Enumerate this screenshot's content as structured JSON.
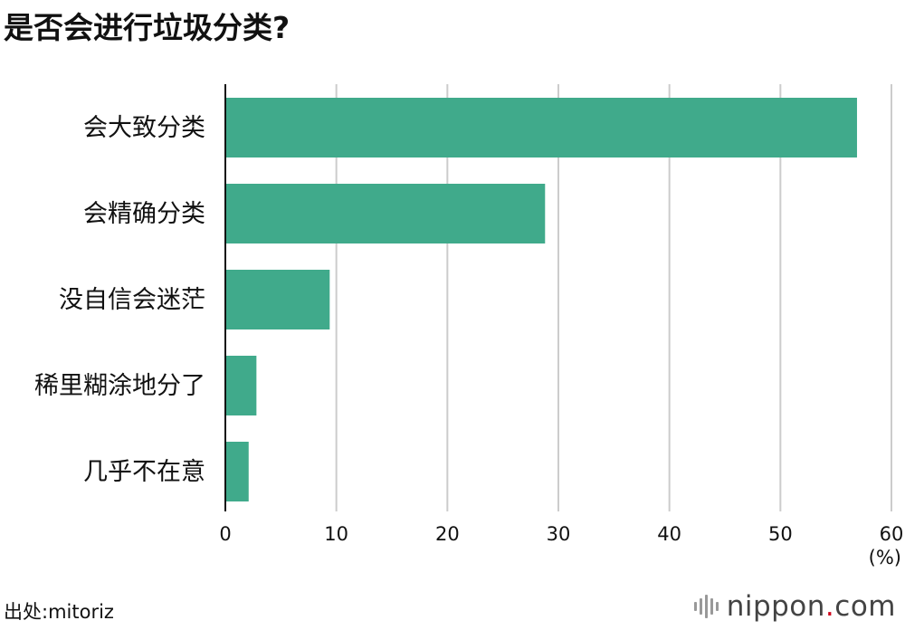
{
  "chart_data": {
    "type": "bar",
    "orientation": "horizontal",
    "title": "是否会进行垃圾分类?",
    "categories": [
      "会大致分类",
      "会精确分类",
      "没自信会迷茫",
      "稀里糊涂地分了",
      "几乎不在意"
    ],
    "values": [
      56.9,
      28.8,
      9.4,
      2.8,
      2.1
    ],
    "xlabel": "",
    "ylabel": "",
    "unit_label": "(%)",
    "xlim": [
      0,
      60
    ],
    "xticks": [
      0,
      10,
      20,
      30,
      40,
      50,
      60
    ],
    "grid": true,
    "legend": "none",
    "bar_color": "#40aa8b",
    "grid_color": "#cccccc",
    "axis_color": "#111111"
  },
  "source": {
    "text": "出处:mitoriz"
  },
  "logo": {
    "name": "nippon",
    "dot": ".",
    "suffix": "com",
    "icon": "sound-bars-icon"
  }
}
